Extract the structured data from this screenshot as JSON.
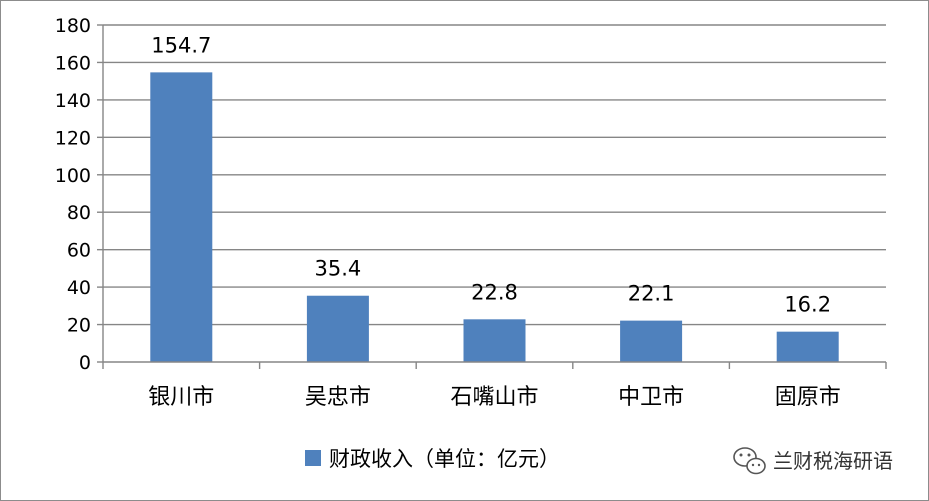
{
  "chart_data": {
    "type": "bar",
    "title": "",
    "xlabel": "",
    "ylabel": "",
    "categories": [
      "银川市",
      "吴忠市",
      "石嘴山市",
      "中卫市",
      "固原市"
    ],
    "series": [
      {
        "name": "财政收入（单位：亿元）",
        "values": [
          154.7,
          35.4,
          22.8,
          22.1,
          16.2
        ]
      }
    ],
    "data_labels": [
      "154.7",
      "35.4",
      "22.8",
      "22.1",
      "16.2"
    ],
    "ylim": [
      0,
      180
    ],
    "yticks": [
      "0",
      "20",
      "40",
      "60",
      "80",
      "100",
      "120",
      "140",
      "160",
      "180"
    ],
    "grid": true,
    "legend_position": "bottom",
    "bar_color": "#4f81bd"
  },
  "watermark": {
    "text": "兰财税海研语"
  }
}
